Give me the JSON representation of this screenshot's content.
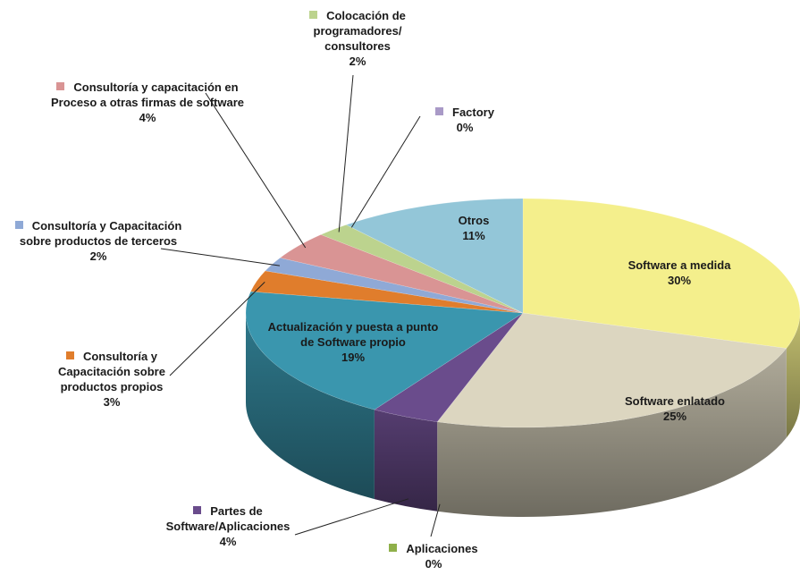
{
  "chart_data": {
    "type": "pie3d",
    "categories": [
      "Software a medida",
      "Software enlatado",
      "Aplicaciones",
      "Partes de Software/Aplicaciones",
      "Actualización y puesta a punto de Software propio",
      "Consultoría y Capacitación sobre productos propios",
      "Consultoría y Capacitación sobre productos de terceros",
      "Consultoría y capacitación en Proceso a otras firmas de software",
      "Colocación de programadores/ consultores",
      "Factory",
      "Otros"
    ],
    "values": [
      30,
      25,
      0,
      4,
      19,
      3,
      2,
      4,
      2,
      0,
      11
    ],
    "value_labels": [
      "30%",
      "25%",
      "0%",
      "4%",
      "19%",
      "3%",
      "2%",
      "4%",
      "2%",
      "0%",
      "11%"
    ],
    "colors": [
      "#f4ef8c",
      "#dcd6c0",
      "#8fb04a",
      "#6a4c8c",
      "#3a96ae",
      "#e07d2c",
      "#8fa9d6",
      "#d99494",
      "#bcd38e",
      "#a99ac7",
      "#93c6d8"
    ]
  }
}
